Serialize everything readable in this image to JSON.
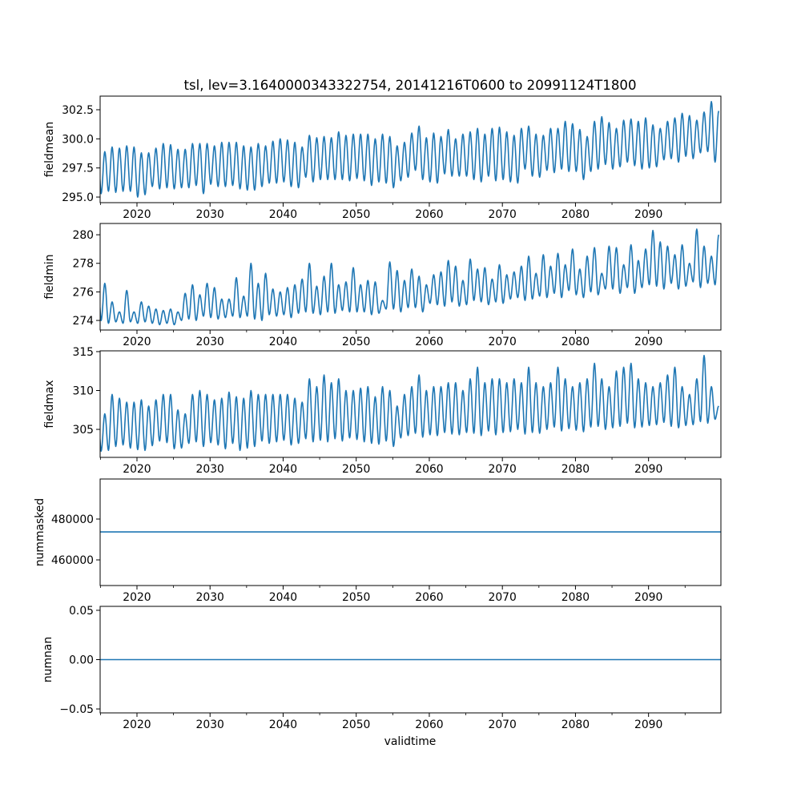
{
  "chart_data": {
    "type": "line",
    "title": "tsl, lev=3.1640000343322754, 20141216T0600 to 20991124T1800",
    "xlabel": "validtime",
    "xlim": [
      2014.96,
      2099.9
    ],
    "x_major_ticks": [
      2020,
      2030,
      2040,
      2050,
      2060,
      2070,
      2080,
      2090
    ],
    "x_major_tick_labels": [
      "2020",
      "2030",
      "2040",
      "2050",
      "2060",
      "2070",
      "2080",
      "2090"
    ],
    "x_minor_ticks": [
      2015,
      2025,
      2035,
      2045,
      2055,
      2065,
      2075,
      2085,
      2095
    ],
    "line_color": "#1f77b4",
    "grid": false,
    "panels": [
      {
        "ylabel": "fieldmean",
        "ylim": [
          294.52,
          303.67
        ],
        "yticks": [
          295.0,
          297.5,
          300.0,
          302.5
        ],
        "ytick_labels": [
          "295.0",
          "297.5",
          "300.0",
          "302.5"
        ],
        "series_kind": "seasonal",
        "years_start": 2015,
        "annual_peaks": [
          298.9,
          299.3,
          299.2,
          299.4,
          299.3,
          298.8,
          298.8,
          299.2,
          299.6,
          299.5,
          299.1,
          299.1,
          299.6,
          299.6,
          299.6,
          299.4,
          299.7,
          299.7,
          299.7,
          299.4,
          299.3,
          299.6,
          299.4,
          299.8,
          300.0,
          299.9,
          299.7,
          299.3,
          300.3,
          300.1,
          300.2,
          300.1,
          300.6,
          300.3,
          300.4,
          300.4,
          300.4,
          300.0,
          300.4,
          300.2,
          299.4,
          299.7,
          300.5,
          301.1,
          300.1,
          300.5,
          300.2,
          300.8,
          300.0,
          300.4,
          300.6,
          300.9,
          300.4,
          300.9,
          301.0,
          300.6,
          300.3,
          300.9,
          301.1,
          300.4,
          300.3,
          300.9,
          300.9,
          301.5,
          301.3,
          300.8,
          300.2,
          301.5,
          301.9,
          301.4,
          300.9,
          301.6,
          301.7,
          301.5,
          301.8,
          301.2,
          300.9,
          301.5,
          301.8,
          302.2,
          302.0,
          301.6,
          302.3,
          303.2,
          302.4
        ],
        "annual_troughs": [
          295.3,
          295.5,
          295.4,
          295.5,
          295.5,
          295.0,
          295.2,
          295.9,
          295.7,
          295.8,
          295.7,
          295.8,
          295.8,
          296.0,
          295.3,
          296.1,
          295.9,
          295.9,
          296.0,
          295.7,
          295.6,
          295.6,
          295.9,
          296.2,
          296.2,
          296.3,
          295.9,
          295.8,
          296.7,
          296.3,
          296.5,
          296.5,
          296.5,
          296.5,
          296.4,
          296.6,
          296.4,
          296.0,
          296.3,
          296.2,
          295.8,
          296.4,
          296.7,
          297.3,
          296.5,
          296.3,
          296.2,
          297.0,
          296.8,
          296.8,
          296.8,
          296.5,
          296.3,
          296.8,
          296.4,
          296.5,
          296.3,
          296.2,
          297.4,
          296.8,
          296.7,
          297.3,
          297.1,
          297.4,
          297.2,
          297.2,
          296.5,
          297.2,
          297.4,
          297.8,
          297.4,
          297.6,
          298.0,
          297.7,
          297.4,
          297.5,
          297.6,
          298.2,
          298.3,
          298.0,
          298.5,
          298.3,
          298.8,
          298.9,
          298.0
        ]
      },
      {
        "ylabel": "fieldmin",
        "ylim": [
          273.33,
          280.79
        ],
        "yticks": [
          274,
          276,
          278,
          280
        ],
        "ytick_labels": [
          "274",
          "276",
          "278",
          "280"
        ],
        "series_kind": "seasonal",
        "years_start": 2015,
        "annual_peaks": [
          276.6,
          275.3,
          274.6,
          276.1,
          274.6,
          275.3,
          275.0,
          274.8,
          274.7,
          274.8,
          274.6,
          275.9,
          276.5,
          275.8,
          276.6,
          276.3,
          275.5,
          275.5,
          277.0,
          275.7,
          278.0,
          276.6,
          277.3,
          276.2,
          276.0,
          276.3,
          276.5,
          276.9,
          278.0,
          276.4,
          277.1,
          278.0,
          276.5,
          276.7,
          277.7,
          276.5,
          276.8,
          276.7,
          275.4,
          278.1,
          277.5,
          276.8,
          277.6,
          277.1,
          276.5,
          277.2,
          277.4,
          278.2,
          277.8,
          276.8,
          278.3,
          277.6,
          277.7,
          276.9,
          277.9,
          277.2,
          277.4,
          277.8,
          278.5,
          277.3,
          278.6,
          277.8,
          278.7,
          277.9,
          279.0,
          277.6,
          278.5,
          279.1,
          277.3,
          279.2,
          279.1,
          277.9,
          279.3,
          278.2,
          279.0,
          280.3,
          279.5,
          279.2,
          278.6,
          279.3,
          278.0,
          280.4,
          279.2,
          278.5,
          280.0
        ],
        "annual_troughs": [
          274.0,
          273.8,
          273.9,
          273.8,
          273.9,
          273.8,
          273.9,
          273.8,
          273.7,
          273.8,
          273.7,
          274.0,
          274.1,
          274.0,
          274.3,
          274.2,
          274.1,
          274.2,
          274.3,
          274.2,
          274.3,
          274.1,
          274.0,
          274.4,
          274.3,
          274.4,
          274.2,
          274.5,
          274.6,
          274.5,
          274.4,
          274.6,
          274.5,
          274.7,
          274.6,
          274.6,
          274.6,
          274.4,
          274.5,
          274.8,
          274.8,
          274.6,
          274.9,
          274.9,
          274.6,
          275.2,
          275.1,
          275.0,
          275.3,
          275.0,
          275.1,
          275.4,
          275.3,
          275.1,
          275.3,
          275.2,
          275.5,
          275.6,
          275.4,
          275.5,
          275.7,
          275.6,
          275.9,
          275.6,
          276.1,
          275.8,
          275.6,
          276.0,
          275.8,
          276.2,
          276.2,
          275.9,
          276.3,
          275.9,
          276.3,
          276.5,
          276.4,
          276.2,
          276.6,
          276.2,
          276.4,
          276.7,
          276.3,
          276.6,
          276.5
        ]
      },
      {
        "ylabel": "fieldmax",
        "ylim": [
          301.4,
          315.1
        ],
        "yticks": [
          305,
          310,
          315
        ],
        "ytick_labels": [
          "305",
          "310",
          "315"
        ],
        "series_kind": "seasonal",
        "years_start": 2015,
        "annual_peaks": [
          307.0,
          309.5,
          309.0,
          308.5,
          308.5,
          308.8,
          308.0,
          308.8,
          309.5,
          309.5,
          307.5,
          307.0,
          309.5,
          310.0,
          309.5,
          308.8,
          309.0,
          309.8,
          309.2,
          309.0,
          310.0,
          309.5,
          309.5,
          309.5,
          309.5,
          309.5,
          309.0,
          308.5,
          311.5,
          310.5,
          312.0,
          311.0,
          311.5,
          310.0,
          310.0,
          310.3,
          310.5,
          309.2,
          310.5,
          310.0,
          308.0,
          309.5,
          310.5,
          312.0,
          310.0,
          310.5,
          310.5,
          311.0,
          311.0,
          310.0,
          311.5,
          313.0,
          311.0,
          311.5,
          311.5,
          311.0,
          311.5,
          311.0,
          313.0,
          311.0,
          310.5,
          311.0,
          313.0,
          311.5,
          310.5,
          311.0,
          311.5,
          313.5,
          311.5,
          310.5,
          312.5,
          313.0,
          313.5,
          311.5,
          311.0,
          310.5,
          311.0,
          312.0,
          313.0,
          310.5,
          309.5,
          311.5,
          314.5,
          310.5,
          308.0
        ],
        "annual_troughs": [
          302.2,
          302.3,
          302.8,
          303.0,
          302.6,
          302.4,
          302.3,
          302.9,
          303.5,
          303.3,
          302.5,
          302.6,
          303.2,
          303.4,
          302.8,
          303.3,
          303.0,
          302.5,
          303.2,
          302.3,
          302.6,
          302.8,
          303.5,
          303.2,
          303.4,
          303.6,
          303.0,
          303.2,
          303.8,
          303.4,
          303.6,
          303.4,
          303.8,
          303.5,
          303.9,
          303.7,
          303.4,
          303.2,
          303.1,
          303.5,
          302.8,
          303.9,
          304.2,
          304.5,
          304.0,
          304.3,
          304.2,
          304.6,
          304.4,
          304.3,
          304.6,
          304.5,
          304.2,
          304.8,
          304.3,
          304.6,
          304.7,
          305.0,
          304.4,
          304.6,
          304.5,
          305.0,
          305.3,
          304.8,
          305.1,
          304.9,
          304.7,
          305.3,
          305.4,
          305.0,
          305.2,
          305.4,
          305.8,
          305.2,
          305.3,
          305.5,
          305.6,
          305.9,
          305.4,
          305.2,
          305.5,
          305.6,
          306.0,
          305.8,
          306.3
        ]
      },
      {
        "ylabel": "nummasked",
        "ylim": [
          447450,
          499600
        ],
        "yticks": [
          460000,
          480000
        ],
        "ytick_labels": [
          "460000",
          "480000"
        ],
        "series_kind": "constant",
        "value": 473700
      },
      {
        "ylabel": "numnan",
        "ylim": [
          -0.054,
          0.054
        ],
        "yticks": [
          -0.05,
          0.0,
          0.05
        ],
        "ytick_labels": [
          "−0.05",
          "0.00",
          "0.05"
        ],
        "series_kind": "constant",
        "value": 0.0
      }
    ]
  }
}
